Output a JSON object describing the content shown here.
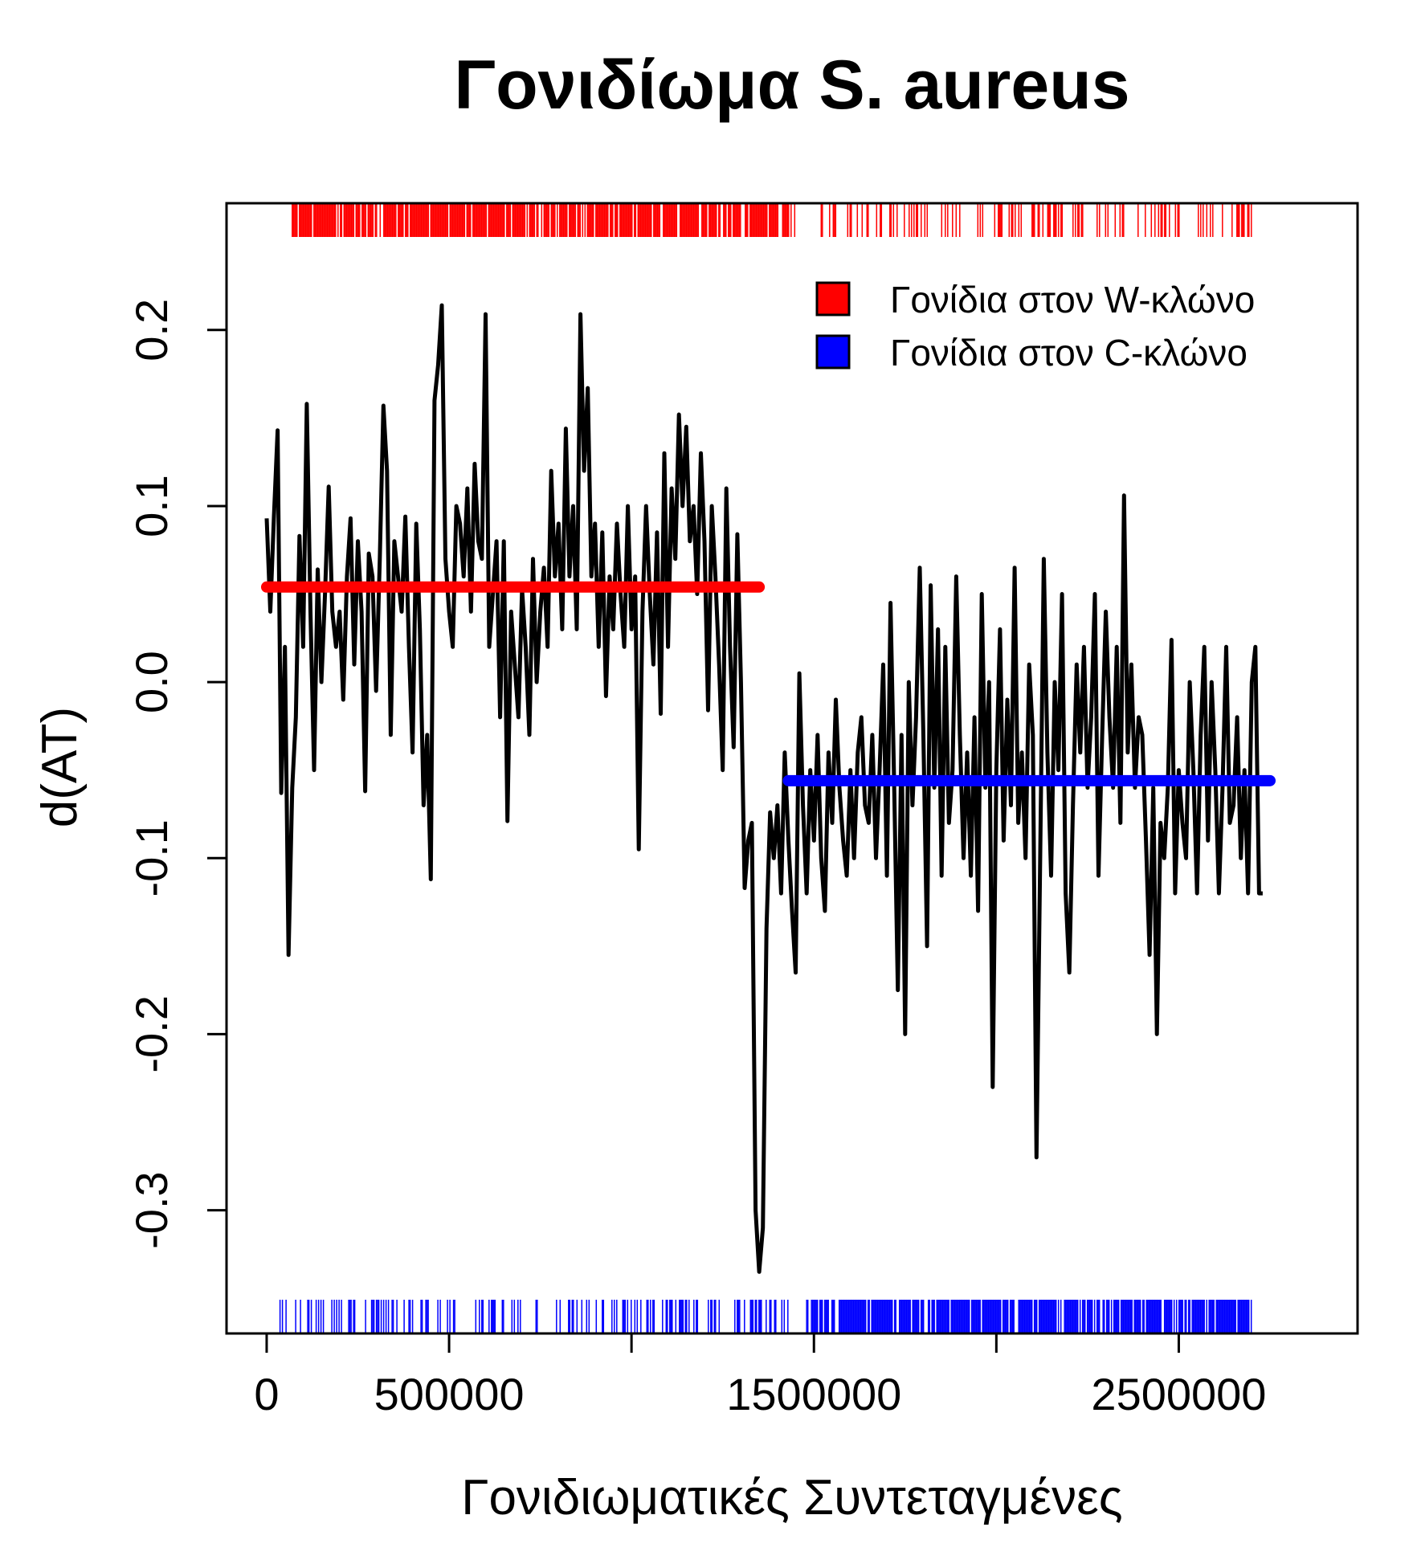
{
  "chart_data": {
    "type": "line",
    "title": "Γονιδίωμα S. aureus",
    "xlabel": "Γονιδιωματικές Συντεταγμένες",
    "ylabel": "d(AT)",
    "xlim": [
      -110000,
      2990000
    ],
    "ylim": [
      -0.37,
      0.272
    ],
    "x_ticks": [
      0,
      500000,
      1000000,
      1500000,
      2000000,
      2500000
    ],
    "x_tick_labels": [
      "0",
      "500000",
      "",
      "1500000",
      "",
      "2500000"
    ],
    "y_ticks": [
      -0.3,
      -0.2,
      -0.1,
      0.0,
      0.1,
      0.2
    ],
    "y_tick_labels": [
      "-0.3",
      "-0.2",
      "-0.1",
      "0.0",
      "0.1",
      "0.2"
    ],
    "legend": {
      "position": "top-right",
      "entries": [
        {
          "label": "Γονίδια στον W-κλώνο",
          "color": "#ff0000"
        },
        {
          "label": "Γονίδια στον C-κλώνο",
          "color": "#0000ff"
        }
      ]
    },
    "colors": {
      "line": "#000000",
      "w_strand": "#ff0000",
      "c_strand": "#0000ff"
    },
    "series": [
      {
        "values_xy": [
          [
            0,
            0.093
          ],
          [
            10000,
            0.04
          ],
          [
            20000,
            0.094
          ],
          [
            30000,
            0.143
          ],
          [
            40000,
            -0.063
          ],
          [
            50000,
            0.02
          ],
          [
            60000,
            -0.155
          ],
          [
            70000,
            -0.06
          ],
          [
            80000,
            -0.02
          ],
          [
            90000,
            0.083
          ],
          [
            100000,
            0.02
          ],
          [
            110000,
            0.158
          ],
          [
            120000,
            0.04
          ],
          [
            130000,
            -0.05
          ],
          [
            140000,
            0.064
          ],
          [
            150000,
            0.0
          ],
          [
            160000,
            0.05
          ],
          [
            170000,
            0.111
          ],
          [
            180000,
            0.04
          ],
          [
            190000,
            0.02
          ],
          [
            200000,
            0.04
          ],
          [
            210000,
            -0.01
          ],
          [
            220000,
            0.06
          ],
          [
            230000,
            0.093
          ],
          [
            240000,
            0.01
          ],
          [
            250000,
            0.08
          ],
          [
            260000,
            0.04
          ],
          [
            270000,
            -0.062
          ],
          [
            280000,
            0.073
          ],
          [
            290000,
            0.06
          ],
          [
            300000,
            -0.005
          ],
          [
            310000,
            0.07
          ],
          [
            320000,
            0.157
          ],
          [
            330000,
            0.12
          ],
          [
            340000,
            -0.03
          ],
          [
            350000,
            0.08
          ],
          [
            360000,
            0.06
          ],
          [
            370000,
            0.04
          ],
          [
            380000,
            0.094
          ],
          [
            390000,
            0.02
          ],
          [
            400000,
            -0.04
          ],
          [
            410000,
            0.09
          ],
          [
            420000,
            0.03
          ],
          [
            430000,
            -0.07
          ],
          [
            440000,
            -0.03
          ],
          [
            450000,
            -0.112
          ],
          [
            460000,
            0.16
          ],
          [
            470000,
            0.18
          ],
          [
            480000,
            0.214
          ],
          [
            490000,
            0.07
          ],
          [
            500000,
            0.04
          ],
          [
            510000,
            0.02
          ],
          [
            520000,
            0.1
          ],
          [
            530000,
            0.09
          ],
          [
            540000,
            0.06
          ],
          [
            550000,
            0.11
          ],
          [
            560000,
            0.04
          ],
          [
            570000,
            0.124
          ],
          [
            580000,
            0.08
          ],
          [
            590000,
            0.07
          ],
          [
            600000,
            0.209
          ],
          [
            610000,
            0.02
          ],
          [
            620000,
            0.05
          ],
          [
            630000,
            0.08
          ],
          [
            640000,
            -0.02
          ],
          [
            650000,
            0.08
          ],
          [
            660000,
            -0.079
          ],
          [
            670000,
            0.04
          ],
          [
            680000,
            0.01
          ],
          [
            690000,
            -0.02
          ],
          [
            700000,
            0.053
          ],
          [
            710000,
            0.02
          ],
          [
            720000,
            -0.03
          ],
          [
            730000,
            0.07
          ],
          [
            740000,
            0.0
          ],
          [
            750000,
            0.04
          ],
          [
            760000,
            0.065
          ],
          [
            770000,
            0.02
          ],
          [
            780000,
            0.12
          ],
          [
            790000,
            0.06
          ],
          [
            800000,
            0.09
          ],
          [
            810000,
            0.03
          ],
          [
            820000,
            0.144
          ],
          [
            830000,
            0.06
          ],
          [
            840000,
            0.1
          ],
          [
            850000,
            0.03
          ],
          [
            860000,
            0.209
          ],
          [
            870000,
            0.12
          ],
          [
            880000,
            0.167
          ],
          [
            890000,
            0.06
          ],
          [
            900000,
            0.09
          ],
          [
            910000,
            0.02
          ],
          [
            920000,
            0.085
          ],
          [
            930000,
            -0.008
          ],
          [
            940000,
            0.06
          ],
          [
            950000,
            0.03
          ],
          [
            960000,
            0.09
          ],
          [
            970000,
            0.05
          ],
          [
            980000,
            0.02
          ],
          [
            990000,
            0.1
          ],
          [
            1000000,
            0.03
          ],
          [
            1010000,
            0.06
          ],
          [
            1020000,
            -0.095
          ],
          [
            1030000,
            0.04
          ],
          [
            1040000,
            0.1
          ],
          [
            1050000,
            0.05
          ],
          [
            1060000,
            0.01
          ],
          [
            1070000,
            0.085
          ],
          [
            1080000,
            -0.018
          ],
          [
            1090000,
            0.13
          ],
          [
            1100000,
            0.02
          ],
          [
            1110000,
            0.11
          ],
          [
            1120000,
            0.07
          ],
          [
            1130000,
            0.152
          ],
          [
            1140000,
            0.1
          ],
          [
            1150000,
            0.145
          ],
          [
            1160000,
            0.08
          ],
          [
            1170000,
            0.1
          ],
          [
            1180000,
            0.05
          ],
          [
            1190000,
            0.13
          ],
          [
            1200000,
            0.08
          ],
          [
            1210000,
            -0.016
          ],
          [
            1220000,
            0.1
          ],
          [
            1230000,
            0.06
          ],
          [
            1240000,
            0.01
          ],
          [
            1250000,
            -0.05
          ],
          [
            1260000,
            0.11
          ],
          [
            1270000,
            0.02
          ],
          [
            1280000,
            -0.037
          ],
          [
            1290000,
            0.084
          ],
          [
            1300000,
            0.0
          ],
          [
            1310000,
            -0.117
          ],
          [
            1320000,
            -0.09
          ],
          [
            1330000,
            -0.08
          ],
          [
            1340000,
            -0.3
          ],
          [
            1350000,
            -0.335
          ],
          [
            1360000,
            -0.31
          ],
          [
            1370000,
            -0.14
          ],
          [
            1380000,
            -0.074
          ],
          [
            1390000,
            -0.1
          ],
          [
            1400000,
            -0.07
          ],
          [
            1410000,
            -0.12
          ],
          [
            1420000,
            -0.04
          ],
          [
            1430000,
            -0.09
          ],
          [
            1440000,
            -0.13
          ],
          [
            1450000,
            -0.165
          ],
          [
            1460000,
            0.005
          ],
          [
            1470000,
            -0.07
          ],
          [
            1480000,
            -0.12
          ],
          [
            1490000,
            -0.05
          ],
          [
            1500000,
            -0.09
          ],
          [
            1510000,
            -0.03
          ],
          [
            1520000,
            -0.1
          ],
          [
            1530000,
            -0.13
          ],
          [
            1540000,
            -0.04
          ],
          [
            1550000,
            -0.08
          ],
          [
            1560000,
            -0.01
          ],
          [
            1570000,
            -0.06
          ],
          [
            1580000,
            -0.09
          ],
          [
            1590000,
            -0.11
          ],
          [
            1600000,
            -0.05
          ],
          [
            1610000,
            -0.1
          ],
          [
            1620000,
            -0.04
          ],
          [
            1630000,
            -0.02
          ],
          [
            1640000,
            -0.07
          ],
          [
            1650000,
            -0.08
          ],
          [
            1660000,
            -0.03
          ],
          [
            1670000,
            -0.1
          ],
          [
            1680000,
            -0.05
          ],
          [
            1690000,
            0.01
          ],
          [
            1700000,
            -0.11
          ],
          [
            1710000,
            0.045
          ],
          [
            1720000,
            -0.06
          ],
          [
            1730000,
            -0.175
          ],
          [
            1740000,
            -0.03
          ],
          [
            1750000,
            -0.2
          ],
          [
            1760000,
            0.0
          ],
          [
            1770000,
            -0.07
          ],
          [
            1780000,
            -0.02
          ],
          [
            1790000,
            0.065
          ],
          [
            1800000,
            -0.03
          ],
          [
            1810000,
            -0.15
          ],
          [
            1820000,
            0.055
          ],
          [
            1830000,
            -0.06
          ],
          [
            1840000,
            0.03
          ],
          [
            1850000,
            -0.11
          ],
          [
            1860000,
            0.02
          ],
          [
            1870000,
            -0.08
          ],
          [
            1880000,
            -0.05
          ],
          [
            1890000,
            0.06
          ],
          [
            1900000,
            -0.03
          ],
          [
            1910000,
            -0.1
          ],
          [
            1920000,
            -0.04
          ],
          [
            1930000,
            -0.11
          ],
          [
            1940000,
            -0.02
          ],
          [
            1950000,
            -0.13
          ],
          [
            1960000,
            0.05
          ],
          [
            1970000,
            -0.06
          ],
          [
            1980000,
            0.0
          ],
          [
            1990000,
            -0.23
          ],
          [
            2000000,
            -0.05
          ],
          [
            2010000,
            0.03
          ],
          [
            2020000,
            -0.09
          ],
          [
            2030000,
            -0.01
          ],
          [
            2040000,
            -0.07
          ],
          [
            2050000,
            0.065
          ],
          [
            2060000,
            -0.08
          ],
          [
            2070000,
            -0.04
          ],
          [
            2080000,
            -0.1
          ],
          [
            2090000,
            0.01
          ],
          [
            2100000,
            -0.03
          ],
          [
            2110000,
            -0.27
          ],
          [
            2120000,
            -0.1
          ],
          [
            2130000,
            0.07
          ],
          [
            2140000,
            -0.04
          ],
          [
            2150000,
            -0.11
          ],
          [
            2160000,
            0.0
          ],
          [
            2170000,
            -0.05
          ],
          [
            2180000,
            0.05
          ],
          [
            2190000,
            -0.12
          ],
          [
            2200000,
            -0.165
          ],
          [
            2210000,
            -0.07
          ],
          [
            2220000,
            0.01
          ],
          [
            2230000,
            -0.04
          ],
          [
            2240000,
            0.02
          ],
          [
            2250000,
            -0.06
          ],
          [
            2260000,
            -0.02
          ],
          [
            2270000,
            0.05
          ],
          [
            2280000,
            -0.11
          ],
          [
            2290000,
            -0.03
          ],
          [
            2300000,
            0.04
          ],
          [
            2310000,
            -0.02
          ],
          [
            2320000,
            -0.06
          ],
          [
            2330000,
            0.02
          ],
          [
            2340000,
            -0.08
          ],
          [
            2350000,
            0.106
          ],
          [
            2360000,
            -0.04
          ],
          [
            2370000,
            0.01
          ],
          [
            2380000,
            -0.06
          ],
          [
            2390000,
            -0.02
          ],
          [
            2400000,
            -0.03
          ],
          [
            2410000,
            -0.09
          ],
          [
            2420000,
            -0.155
          ],
          [
            2430000,
            -0.06
          ],
          [
            2440000,
            -0.2
          ],
          [
            2450000,
            -0.08
          ],
          [
            2460000,
            -0.1
          ],
          [
            2470000,
            -0.06
          ],
          [
            2480000,
            0.024
          ],
          [
            2490000,
            -0.12
          ],
          [
            2500000,
            -0.05
          ],
          [
            2510000,
            -0.08
          ],
          [
            2520000,
            -0.1
          ],
          [
            2530000,
            0.0
          ],
          [
            2540000,
            -0.05
          ],
          [
            2550000,
            -0.12
          ],
          [
            2560000,
            -0.03
          ],
          [
            2570000,
            0.02
          ],
          [
            2580000,
            -0.09
          ],
          [
            2590000,
            0.0
          ],
          [
            2600000,
            -0.05
          ],
          [
            2610000,
            -0.12
          ],
          [
            2620000,
            -0.06
          ],
          [
            2630000,
            0.02
          ],
          [
            2640000,
            -0.08
          ],
          [
            2650000,
            -0.07
          ],
          [
            2660000,
            -0.02
          ],
          [
            2670000,
            -0.1
          ],
          [
            2680000,
            -0.05
          ],
          [
            2690000,
            -0.12
          ],
          [
            2700000,
            0.0
          ],
          [
            2710000,
            0.02
          ],
          [
            2720000,
            -0.12
          ],
          [
            2730000,
            -0.12
          ]
        ]
      },
      {
        "name": "Γονίδια στον W-κλώνο",
        "values_xy": [
          [
            0,
            0.054
          ],
          [
            1350000,
            0.054
          ]
        ]
      },
      {
        "name": "Γονίδια στον C-κλώνο",
        "values_xy": [
          [
            1430000,
            -0.056
          ],
          [
            2750000,
            -0.056
          ]
        ]
      }
    ],
    "rug_w": {
      "segments": [
        [
          70000,
          1450000
        ],
        [
          1520000,
          2700000
        ]
      ],
      "density": [
        0.8,
        0.3
      ]
    },
    "rug_c": {
      "segments": [
        [
          30000,
          520000
        ],
        [
          560000,
          1430000
        ],
        [
          1480000,
          2700000
        ]
      ],
      "density": [
        0.3,
        0.35,
        0.85
      ]
    }
  }
}
